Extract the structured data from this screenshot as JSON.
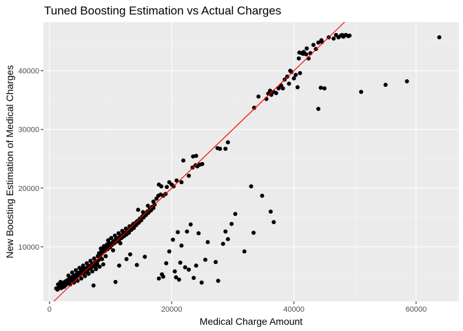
{
  "chart_data": {
    "type": "scatter",
    "title": "Tuned Boosting Estimation vs Actual Charges",
    "xlabel": "Medical Charge Amount",
    "ylabel": "New Boosting Estimation of Medical Charges",
    "xlim": [
      -1000,
      67000
    ],
    "ylim": [
      700,
      48300
    ],
    "x_ticks": [
      0,
      20000,
      40000,
      60000
    ],
    "y_ticks": [
      10000,
      20000,
      30000,
      40000
    ],
    "x_tick_labels": [
      "0",
      "20000",
      "40000",
      "60000"
    ],
    "y_tick_labels": [
      "10000",
      "20000",
      "30000",
      "40000"
    ],
    "grid": true,
    "legend": "none",
    "colors": {
      "panel_background": "#ebebeb",
      "grid_major": "#ffffff",
      "point": "#000000",
      "reference_line": "#ff0000"
    },
    "reference_line": {
      "intercept": 0,
      "slope": 1
    },
    "points": [
      [
        1100,
        2900
      ],
      [
        1300,
        2700
      ],
      [
        1500,
        3000
      ],
      [
        1700,
        3300
      ],
      [
        1900,
        2950
      ],
      [
        2000,
        3600
      ],
      [
        2200,
        3400
      ],
      [
        2300,
        3900
      ],
      [
        2500,
        3700
      ],
      [
        2600,
        4100
      ],
      [
        1400,
        3600
      ],
      [
        1800,
        4000
      ],
      [
        2100,
        3100
      ],
      [
        2400,
        3200
      ],
      [
        2700,
        3500
      ],
      [
        2900,
        4300
      ],
      [
        3000,
        3800
      ],
      [
        3200,
        4500
      ],
      [
        3300,
        4100
      ],
      [
        3500,
        4700
      ],
      [
        3600,
        4300
      ],
      [
        3800,
        4900
      ],
      [
        3900,
        4500
      ],
      [
        4100,
        5100
      ],
      [
        4200,
        4700
      ],
      [
        4400,
        5300
      ],
      [
        4500,
        4900
      ],
      [
        4700,
        5500
      ],
      [
        4800,
        5100
      ],
      [
        5000,
        5700
      ],
      [
        5100,
        5300
      ],
      [
        5300,
        5900
      ],
      [
        5400,
        5500
      ],
      [
        5600,
        6100
      ],
      [
        5700,
        5700
      ],
      [
        5900,
        6300
      ],
      [
        6000,
        5900
      ],
      [
        6200,
        6500
      ],
      [
        6300,
        6100
      ],
      [
        6500,
        6700
      ],
      [
        6600,
        6300
      ],
      [
        6800,
        6900
      ],
      [
        6900,
        6500
      ],
      [
        7100,
        7100
      ],
      [
        7200,
        6700
      ],
      [
        7400,
        7300
      ],
      [
        7500,
        6900
      ],
      [
        7700,
        7500
      ],
      [
        7800,
        7100
      ],
      [
        8000,
        7700
      ],
      [
        3100,
        5100
      ],
      [
        3700,
        5600
      ],
      [
        4300,
        6000
      ],
      [
        4900,
        6400
      ],
      [
        5500,
        6800
      ],
      [
        6100,
        7200
      ],
      [
        6700,
        7600
      ],
      [
        7300,
        8000
      ],
      [
        7900,
        8400
      ],
      [
        8500,
        8800
      ],
      [
        3400,
        3600
      ],
      [
        4000,
        3900
      ],
      [
        4600,
        4200
      ],
      [
        5200,
        4600
      ],
      [
        5800,
        5000
      ],
      [
        6400,
        5400
      ],
      [
        7000,
        5800
      ],
      [
        7600,
        6200
      ],
      [
        8200,
        6600
      ],
      [
        8800,
        7000
      ],
      [
        8100,
        8900
      ],
      [
        8300,
        8300
      ],
      [
        8500,
        9300
      ],
      [
        8700,
        9000
      ],
      [
        8900,
        9600
      ],
      [
        9100,
        9300
      ],
      [
        9300,
        9900
      ],
      [
        9500,
        9600
      ],
      [
        9700,
        10200
      ],
      [
        9900,
        9900
      ],
      [
        8400,
        9700
      ],
      [
        8900,
        10100
      ],
      [
        9400,
        10400
      ],
      [
        9800,
        10600
      ],
      [
        10200,
        10300
      ],
      [
        10400,
        10900
      ],
      [
        10600,
        10600
      ],
      [
        10800,
        11200
      ],
      [
        11000,
        10900
      ],
      [
        11200,
        11500
      ],
      [
        11400,
        11200
      ],
      [
        11600,
        11800
      ],
      [
        11800,
        11500
      ],
      [
        12000,
        12100
      ],
      [
        12200,
        11800
      ],
      [
        12400,
        12400
      ],
      [
        12600,
        12100
      ],
      [
        12800,
        12700
      ],
      [
        13000,
        12400
      ],
      [
        13200,
        13000
      ],
      [
        9600,
        11100
      ],
      [
        10100,
        11500
      ],
      [
        10700,
        11900
      ],
      [
        11300,
        12300
      ],
      [
        11900,
        12700
      ],
      [
        12500,
        13100
      ],
      [
        13100,
        13500
      ],
      [
        13700,
        13900
      ],
      [
        14300,
        14300
      ],
      [
        14900,
        14700
      ],
      [
        13400,
        12900
      ],
      [
        13600,
        13600
      ],
      [
        13800,
        13200
      ],
      [
        14000,
        14000
      ],
      [
        14200,
        13700
      ],
      [
        14400,
        14400
      ],
      [
        14600,
        14100
      ],
      [
        14800,
        14800
      ],
      [
        15000,
        14500
      ],
      [
        15200,
        15200
      ],
      [
        15400,
        15000
      ],
      [
        15600,
        15600
      ],
      [
        15800,
        15400
      ],
      [
        16000,
        16000
      ],
      [
        16200,
        15800
      ],
      [
        16400,
        16400
      ],
      [
        16600,
        16200
      ],
      [
        16800,
        16800
      ],
      [
        17000,
        16600
      ],
      [
        17200,
        17200
      ],
      [
        14500,
        16300
      ],
      [
        15300,
        15900
      ],
      [
        16100,
        17000
      ],
      [
        17000,
        17700
      ],
      [
        17500,
        18200
      ],
      [
        17800,
        18700
      ],
      [
        18200,
        18900
      ],
      [
        18600,
        18700
      ],
      [
        19000,
        19000
      ],
      [
        17900,
        20600
      ],
      [
        18300,
        20300
      ],
      [
        19200,
        20200
      ],
      [
        19600,
        21000
      ],
      [
        20000,
        20600
      ],
      [
        20300,
        20300
      ],
      [
        20800,
        21300
      ],
      [
        21600,
        21000
      ],
      [
        21900,
        24700
      ],
      [
        22800,
        22100
      ],
      [
        23400,
        23500
      ],
      [
        23900,
        23900
      ],
      [
        24200,
        23700
      ],
      [
        24600,
        24000
      ],
      [
        25000,
        24100
      ],
      [
        24000,
        25500
      ],
      [
        23500,
        25400
      ],
      [
        27500,
        26800
      ],
      [
        27900,
        26700
      ],
      [
        28800,
        26700
      ],
      [
        29200,
        27800
      ],
      [
        33500,
        33700
      ],
      [
        34200,
        35600
      ],
      [
        35500,
        35200
      ],
      [
        35800,
        36100
      ],
      [
        36100,
        36600
      ],
      [
        36300,
        35900
      ],
      [
        36700,
        36400
      ],
      [
        37100,
        36200
      ],
      [
        37500,
        37000
      ],
      [
        37900,
        37500
      ],
      [
        38200,
        37000
      ],
      [
        38500,
        38500
      ],
      [
        38900,
        39000
      ],
      [
        39200,
        37800
      ],
      [
        39400,
        40000
      ],
      [
        39600,
        39800
      ],
      [
        40000,
        38700
      ],
      [
        40300,
        39300
      ],
      [
        40600,
        37200
      ],
      [
        40800,
        42100
      ],
      [
        41000,
        39600
      ],
      [
        41300,
        43000
      ],
      [
        41600,
        43200
      ],
      [
        42000,
        42800
      ],
      [
        42400,
        42100
      ],
      [
        42100,
        43800
      ],
      [
        42700,
        43000
      ],
      [
        43200,
        44400
      ],
      [
        44000,
        44800
      ],
      [
        44500,
        45200
      ],
      [
        40900,
        43100
      ],
      [
        41500,
        42900
      ],
      [
        43600,
        43700
      ],
      [
        44600,
        44900
      ],
      [
        45700,
        45700
      ],
      [
        46500,
        45500
      ],
      [
        46900,
        46100
      ],
      [
        47300,
        45700
      ],
      [
        47700,
        46000
      ],
      [
        48100,
        45800
      ],
      [
        48500,
        46100
      ],
      [
        48900,
        45900
      ],
      [
        49100,
        46000
      ],
      [
        47900,
        46100
      ],
      [
        44400,
        37100
      ],
      [
        45000,
        37000
      ],
      [
        44000,
        33500
      ],
      [
        51000,
        36400
      ],
      [
        55000,
        37600
      ],
      [
        58500,
        38200
      ],
      [
        63800,
        45700
      ],
      [
        7200,
        3400
      ],
      [
        10800,
        4000
      ],
      [
        11400,
        6800
      ],
      [
        12600,
        7900
      ],
      [
        13200,
        8700
      ],
      [
        14300,
        6900
      ],
      [
        15600,
        8300
      ],
      [
        17900,
        4600
      ],
      [
        18400,
        5300
      ],
      [
        18600,
        4900
      ],
      [
        19100,
        7200
      ],
      [
        19600,
        9200
      ],
      [
        20200,
        11200
      ],
      [
        20500,
        5800
      ],
      [
        20700,
        4800
      ],
      [
        21000,
        12500
      ],
      [
        21200,
        4400
      ],
      [
        21400,
        7300
      ],
      [
        21600,
        10200
      ],
      [
        22200,
        6500
      ],
      [
        22500,
        12600
      ],
      [
        22800,
        6100
      ],
      [
        23100,
        13800
      ],
      [
        23600,
        4700
      ],
      [
        24000,
        6800
      ],
      [
        24400,
        12300
      ],
      [
        24900,
        3900
      ],
      [
        25500,
        7800
      ],
      [
        25900,
        10800
      ],
      [
        27200,
        7400
      ],
      [
        27600,
        4200
      ],
      [
        28400,
        10500
      ],
      [
        28800,
        12600
      ],
      [
        29200,
        11300
      ],
      [
        29800,
        13900
      ],
      [
        30400,
        15600
      ],
      [
        31900,
        9200
      ],
      [
        33000,
        20300
      ],
      [
        33400,
        12400
      ],
      [
        34800,
        18700
      ],
      [
        36200,
        16000
      ],
      [
        36700,
        14200
      ],
      [
        5400,
        6300
      ],
      [
        6200,
        5600
      ],
      [
        7700,
        6800
      ],
      [
        8600,
        7900
      ],
      [
        9200,
        8400
      ],
      [
        10400,
        9400
      ],
      [
        11600,
        10600
      ]
    ]
  }
}
